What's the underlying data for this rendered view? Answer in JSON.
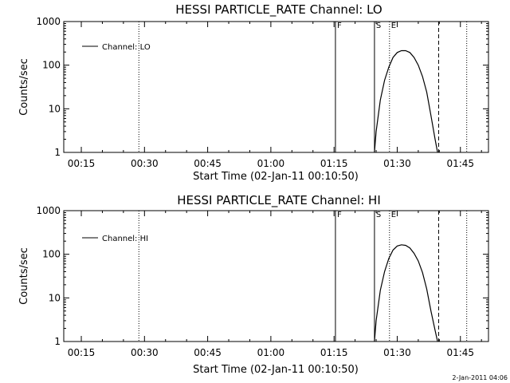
{
  "footer": {
    "timestamp": "2-Jan-2011 04:06"
  },
  "chart_data": [
    {
      "type": "line",
      "title": "HESSI PARTICLE_RATE Channel: LO",
      "xlabel": "Start Time (02-Jan-11 00:10:50)",
      "ylabel": "Counts/sec",
      "yscale": "log",
      "ylim": [
        1,
        1000
      ],
      "xlim": [
        "00:10:50",
        "01:51:40"
      ],
      "x_tick_labels": [
        "00:15",
        "00:30",
        "00:45",
        "01:00",
        "01:15",
        "01:30",
        "01:45"
      ],
      "y_tick_labels": [
        "1000",
        "100",
        "10",
        "1"
      ],
      "legend": {
        "position": "top-left",
        "entries": [
          "Channel: LO"
        ]
      },
      "line_color": "#000000",
      "series": [
        {
          "name": "Channel: LO",
          "x": [
            "01:24:36",
            "01:25:00",
            "01:26:00",
            "01:27:00",
            "01:28:00",
            "01:29:00",
            "01:30:00",
            "01:31:00",
            "01:32:00",
            "01:33:00",
            "01:34:00",
            "01:35:00",
            "01:36:00",
            "01:37:00",
            "01:38:00",
            "01:39:00",
            "01:39:35"
          ],
          "y": [
            1,
            3,
            16,
            45,
            90,
            150,
            195,
            215,
            215,
            195,
            150,
            100,
            55,
            24,
            7,
            2,
            1
          ]
        }
      ],
      "vertical_markers": [
        {
          "x": "00:28:40",
          "style": "dotted"
        },
        {
          "x": "01:15:20",
          "style": "solid",
          "label": "F"
        },
        {
          "x": "01:24:36",
          "style": "solid",
          "label": "S"
        },
        {
          "x": "01:28:10",
          "style": "dotted",
          "label": "E"
        },
        {
          "x": "01:39:50",
          "style": "dashed"
        },
        {
          "x": "01:46:30",
          "style": "dotted"
        }
      ]
    },
    {
      "type": "line",
      "title": "HESSI PARTICLE_RATE Channel: HI",
      "xlabel": "Start Time (02-Jan-11 00:10:50)",
      "ylabel": "Counts/sec",
      "yscale": "log",
      "ylim": [
        1,
        1000
      ],
      "xlim": [
        "00:10:50",
        "01:51:40"
      ],
      "x_tick_labels": [
        "00:15",
        "00:30",
        "00:45",
        "01:00",
        "01:15",
        "01:30",
        "01:45"
      ],
      "y_tick_labels": [
        "1000",
        "100",
        "10",
        "1"
      ],
      "legend": {
        "position": "top-left",
        "entries": [
          "Channel: HI"
        ]
      },
      "line_color": "#000000",
      "series": [
        {
          "name": "Channel: HI",
          "x": [
            "01:24:36",
            "01:25:00",
            "01:26:00",
            "01:27:00",
            "01:28:00",
            "01:29:00",
            "01:30:00",
            "01:31:00",
            "01:32:00",
            "01:33:00",
            "01:34:00",
            "01:35:00",
            "01:36:00",
            "01:37:00",
            "01:38:00",
            "01:39:00",
            "01:39:35"
          ],
          "y": [
            1,
            3,
            15,
            40,
            80,
            125,
            155,
            165,
            160,
            140,
            105,
            70,
            38,
            16,
            5,
            1.8,
            1
          ]
        }
      ],
      "vertical_markers": [
        {
          "x": "00:28:40",
          "style": "dotted"
        },
        {
          "x": "01:15:20",
          "style": "solid",
          "label": "F"
        },
        {
          "x": "01:24:36",
          "style": "solid",
          "label": "S"
        },
        {
          "x": "01:28:10",
          "style": "dotted",
          "label": "E"
        },
        {
          "x": "01:39:50",
          "style": "dashed"
        },
        {
          "x": "01:46:30",
          "style": "dotted"
        }
      ]
    }
  ]
}
